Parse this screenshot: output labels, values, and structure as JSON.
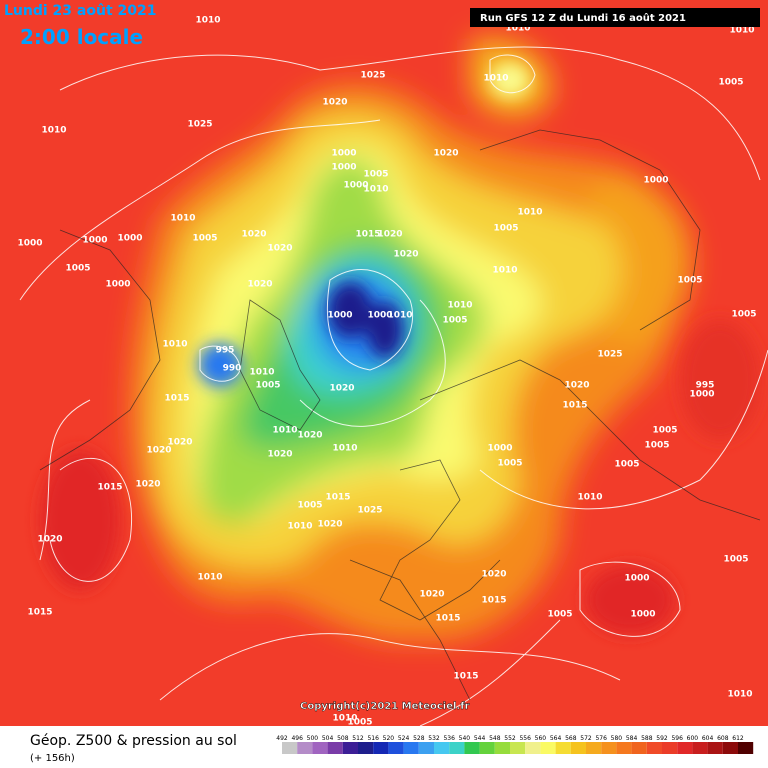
{
  "header": {
    "date": "Lundi 23 août 2021",
    "time": "2:00 locale",
    "run": "Run GFS 12 Z du Lundi 16 août 2021"
  },
  "copyright": "Copyright(c)2021 Meteociel.fr",
  "footer": {
    "title": "Géop. Z500 & pression au sol",
    "lead": "(+ 156h)"
  },
  "isobar_labels": [
    1010,
    1010,
    1010,
    1025,
    1010,
    1010,
    1025,
    1020,
    1005,
    1000,
    1020,
    1000,
    1005,
    1000,
    1010,
    1000,
    1010,
    1010,
    1005,
    1020,
    1000,
    1000,
    1000,
    1015,
    1020,
    1005,
    1020,
    1020,
    1005,
    1000,
    1010,
    1005,
    1020,
    1000,
    1000,
    1010,
    1010,
    1005,
    1005,
    1010,
    995,
    990,
    1010,
    1005,
    1025,
    995,
    1000,
    1020,
    1020,
    1015,
    1015,
    1010,
    1020,
    1005,
    1020,
    1005,
    1020,
    1000,
    1020,
    1010,
    1005,
    1005,
    1015,
    1020,
    1010,
    1005,
    1015,
    1025,
    1010,
    1020,
    1020,
    1005,
    1010,
    1000,
    1020,
    1020,
    1015,
    1000,
    1015,
    1015,
    1005,
    1015,
    1010,
    1010,
    1005
  ],
  "colorbar": {
    "ticks": [
      492,
      496,
      500,
      504,
      508,
      512,
      516,
      520,
      524,
      528,
      532,
      536,
      540,
      544,
      548,
      552,
      556,
      560,
      564,
      568,
      572,
      576,
      580,
      584,
      588,
      592,
      596,
      600,
      604,
      608,
      612
    ],
    "colors": [
      "#c8c8c8",
      "#b48cc8",
      "#a064c0",
      "#7a3ca8",
      "#3c1e96",
      "#1e1e8c",
      "#1428b4",
      "#1e50dc",
      "#2878f0",
      "#3ca0f0",
      "#46c8f0",
      "#3cd2c8",
      "#32c850",
      "#64d23c",
      "#96dc3c",
      "#c8e650",
      "#f0f08c",
      "#fafa64",
      "#f5dc32",
      "#f5c31e",
      "#f5aa1e",
      "#f5911e",
      "#f5781e",
      "#f0641e",
      "#f04b28",
      "#eb3c28",
      "#e12828",
      "#c81e1e",
      "#aa1414",
      "#8c0a0a",
      "#500000"
    ]
  }
}
